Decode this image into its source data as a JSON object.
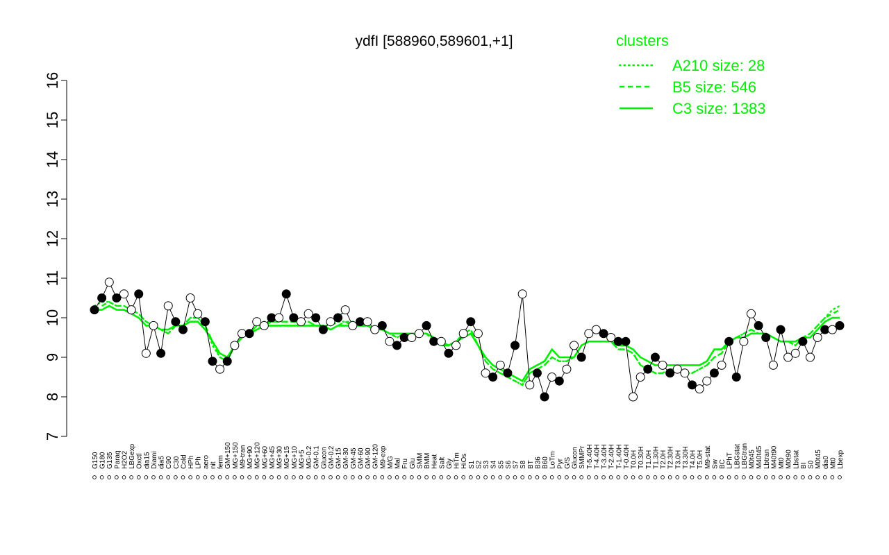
{
  "chart_data": {
    "type": "line",
    "title": "ydfI [588960,589601,+1]",
    "xlabel": "",
    "ylabel": "",
    "ylim": [
      7,
      16
    ],
    "yticks": [
      7,
      8,
      9,
      10,
      11,
      12,
      13,
      14,
      15,
      16
    ],
    "grid": false,
    "legend": {
      "title": "clusters",
      "placement": "top-right",
      "entries": [
        {
          "label": "A210 size: 28",
          "style": "dotted"
        },
        {
          "label": "B5 size: 546",
          "style": "dashed"
        },
        {
          "label": "C3 size: 1383",
          "style": "solid"
        }
      ]
    },
    "colors": {
      "cluster": "#00ee00",
      "axis": "#000000",
      "points": "#000000"
    },
    "xtick_labels": [
      "G150",
      "G180",
      "G135",
      "Paraq",
      "H2O2",
      "LBGexp",
      "Oxctl",
      "dia15",
      "Diami",
      "dia5",
      "C90",
      "C30",
      "Cold",
      "HPh",
      "LPh",
      "aero",
      "nit",
      "ferm",
      "GM+150",
      "MG+150",
      "M9-tran",
      "MG+90",
      "MG+120",
      "MG+60",
      "MG+45",
      "MG+30",
      "MG+15",
      "MG+10",
      "MG+5",
      "MG-0.2",
      "GM-0.1",
      "Glucon",
      "GM-0.2",
      "GM-15",
      "GM-30",
      "GM-45",
      "GM-60",
      "GM-90",
      "GM-120",
      "M9-exp",
      "M/G",
      "Mal",
      "Fru",
      "Glu",
      "SMM",
      "BMM",
      "Heat",
      "Salt",
      "Gly",
      "HiTm",
      "HiOs",
      "S1",
      "S2",
      "S3",
      "S4",
      "S5",
      "S6",
      "S7",
      "S8",
      "BT",
      "B36",
      "B60",
      "LoTm",
      "Pyr",
      "G/S",
      "Glucon",
      "SMMPr",
      "T-5.40H",
      "T-4.40H",
      "T-3.40H",
      "T-2.40H",
      "T-1.40H",
      "T-0.40H",
      "T0.0H",
      "T0.30H",
      "T1.0H",
      "T1.30H",
      "T2.0H",
      "T2.30H",
      "T3.0H",
      "T3.30H",
      "T4.0H",
      "T5.0H",
      "M9-stat",
      "Sw",
      "BC",
      "LPhT",
      "LBGstat",
      "LBGtran",
      "M0t45",
      "M40t45",
      "Lbtran",
      "M40t90",
      "Mt0",
      "M0t90",
      "Lbstat",
      "BI",
      "S0",
      "M0t45",
      "dia0",
      "Mt0",
      "Lbexp"
    ],
    "series": [
      {
        "style": "solid",
        "values": [
          10.2,
          10.2,
          10.3,
          10.2,
          10.2,
          10.1,
          10.0,
          9.8,
          9.8,
          9.7,
          9.7,
          9.8,
          9.8,
          9.9,
          9.9,
          9.7,
          9.4,
          9.1,
          9.0,
          9.3,
          9.5,
          9.6,
          9.7,
          9.8,
          9.8,
          9.8,
          9.8,
          9.8,
          9.8,
          9.8,
          9.8,
          9.8,
          9.7,
          9.8,
          9.8,
          9.8,
          9.8,
          9.8,
          9.7,
          9.7,
          9.6,
          9.6,
          9.6,
          9.6,
          9.6,
          9.6,
          9.5,
          9.4,
          9.3,
          9.4,
          9.5,
          9.6,
          9.3,
          9.0,
          8.8,
          8.7,
          8.6,
          8.5,
          8.4,
          8.7,
          8.8,
          8.9,
          9.2,
          9.0,
          9.0,
          9.0,
          9.3,
          9.4,
          9.4,
          9.4,
          9.4,
          9.3,
          9.3,
          9.2,
          9.0,
          8.9,
          8.8,
          8.8,
          8.8,
          8.8,
          8.8,
          8.8,
          8.8,
          8.9,
          9.2,
          9.2,
          9.4,
          9.5,
          9.5,
          9.6,
          9.6,
          9.6,
          9.5,
          9.4,
          9.4,
          9.4,
          9.5,
          9.5,
          9.7,
          9.9,
          10.0,
          10.0
        ]
      },
      {
        "style": "dashed",
        "values": [
          10.2,
          10.3,
          10.4,
          10.3,
          10.3,
          10.2,
          10.1,
          9.9,
          9.8,
          9.7,
          9.6,
          9.8,
          9.8,
          10.0,
          10.0,
          9.8,
          9.4,
          9.0,
          8.9,
          9.3,
          9.5,
          9.6,
          9.8,
          9.8,
          9.9,
          9.9,
          9.9,
          9.9,
          9.9,
          9.9,
          9.8,
          9.8,
          9.7,
          9.8,
          9.9,
          9.8,
          9.8,
          9.8,
          9.7,
          9.7,
          9.6,
          9.5,
          9.6,
          9.6,
          9.6,
          9.6,
          9.4,
          9.3,
          9.3,
          9.4,
          9.6,
          9.7,
          9.3,
          8.9,
          8.7,
          8.6,
          8.5,
          8.4,
          8.3,
          8.6,
          8.7,
          8.8,
          9.0,
          8.9,
          8.9,
          9.0,
          9.3,
          9.4,
          9.4,
          9.4,
          9.4,
          9.2,
          9.2,
          9.1,
          8.8,
          8.7,
          8.6,
          8.6,
          8.7,
          8.7,
          8.6,
          8.6,
          8.7,
          8.8,
          9.0,
          9.1,
          9.4,
          9.5,
          9.6,
          9.7,
          9.6,
          9.6,
          9.5,
          9.4,
          9.4,
          9.3,
          9.5,
          9.6,
          9.8,
          10.0,
          10.1,
          10.2
        ]
      },
      {
        "style": "dotted",
        "values": [
          10.3,
          10.4,
          10.4,
          10.3,
          10.3,
          10.2,
          10.1,
          9.9,
          9.8,
          9.7,
          9.6,
          9.8,
          9.8,
          10.0,
          10.0,
          9.8,
          9.3,
          9.0,
          8.9,
          9.3,
          9.5,
          9.6,
          9.8,
          9.9,
          9.9,
          9.9,
          9.9,
          9.9,
          9.9,
          9.9,
          9.8,
          9.8,
          9.8,
          9.9,
          9.9,
          9.9,
          9.9,
          9.8,
          9.7,
          9.7,
          9.6,
          9.5,
          9.6,
          9.6,
          9.6,
          9.6,
          9.4,
          9.3,
          9.3,
          9.4,
          9.6,
          9.7,
          9.3,
          8.9,
          8.7,
          8.6,
          8.5,
          8.4,
          8.3,
          8.6,
          8.7,
          8.8,
          9.0,
          8.9,
          8.9,
          9.0,
          9.3,
          9.4,
          9.4,
          9.4,
          9.4,
          9.2,
          9.2,
          9.1,
          8.8,
          8.7,
          8.6,
          8.6,
          8.7,
          8.7,
          8.6,
          8.6,
          8.7,
          8.8,
          9.0,
          9.1,
          9.4,
          9.5,
          9.6,
          9.7,
          9.6,
          9.6,
          9.5,
          9.4,
          9.4,
          9.3,
          9.5,
          9.6,
          9.8,
          10.0,
          10.2,
          10.3
        ]
      },
      {
        "style": "points",
        "values": [
          10.2,
          10.5,
          10.9,
          10.5,
          10.6,
          10.2,
          10.6,
          9.1,
          9.8,
          9.1,
          10.3,
          9.9,
          9.7,
          10.5,
          10.1,
          9.9,
          8.9,
          8.7,
          8.9,
          9.3,
          9.6,
          9.6,
          9.9,
          9.8,
          10.0,
          10.0,
          10.6,
          10.0,
          9.9,
          10.1,
          10.0,
          9.7,
          9.9,
          10.0,
          10.2,
          9.8,
          9.9,
          9.9,
          9.7,
          9.8,
          9.4,
          9.3,
          9.5,
          9.5,
          9.6,
          9.8,
          9.4,
          9.4,
          9.1,
          9.3,
          9.6,
          9.9,
          9.6,
          8.6,
          8.5,
          8.8,
          8.6,
          9.3,
          10.6,
          8.3,
          8.6,
          8.0,
          8.5,
          8.4,
          8.7,
          9.3,
          9.0,
          9.6,
          9.7,
          9.6,
          9.5,
          9.4,
          9.4,
          8.0,
          8.5,
          8.7,
          9.0,
          8.8,
          8.6,
          8.7,
          8.6,
          8.3,
          8.2,
          8.4,
          8.6,
          8.8,
          9.4,
          8.5,
          9.4,
          10.1,
          9.8,
          9.5,
          8.8,
          9.7,
          9.0,
          9.1,
          9.4,
          9.0,
          9.5,
          9.7,
          9.7,
          9.8
        ]
      }
    ]
  }
}
